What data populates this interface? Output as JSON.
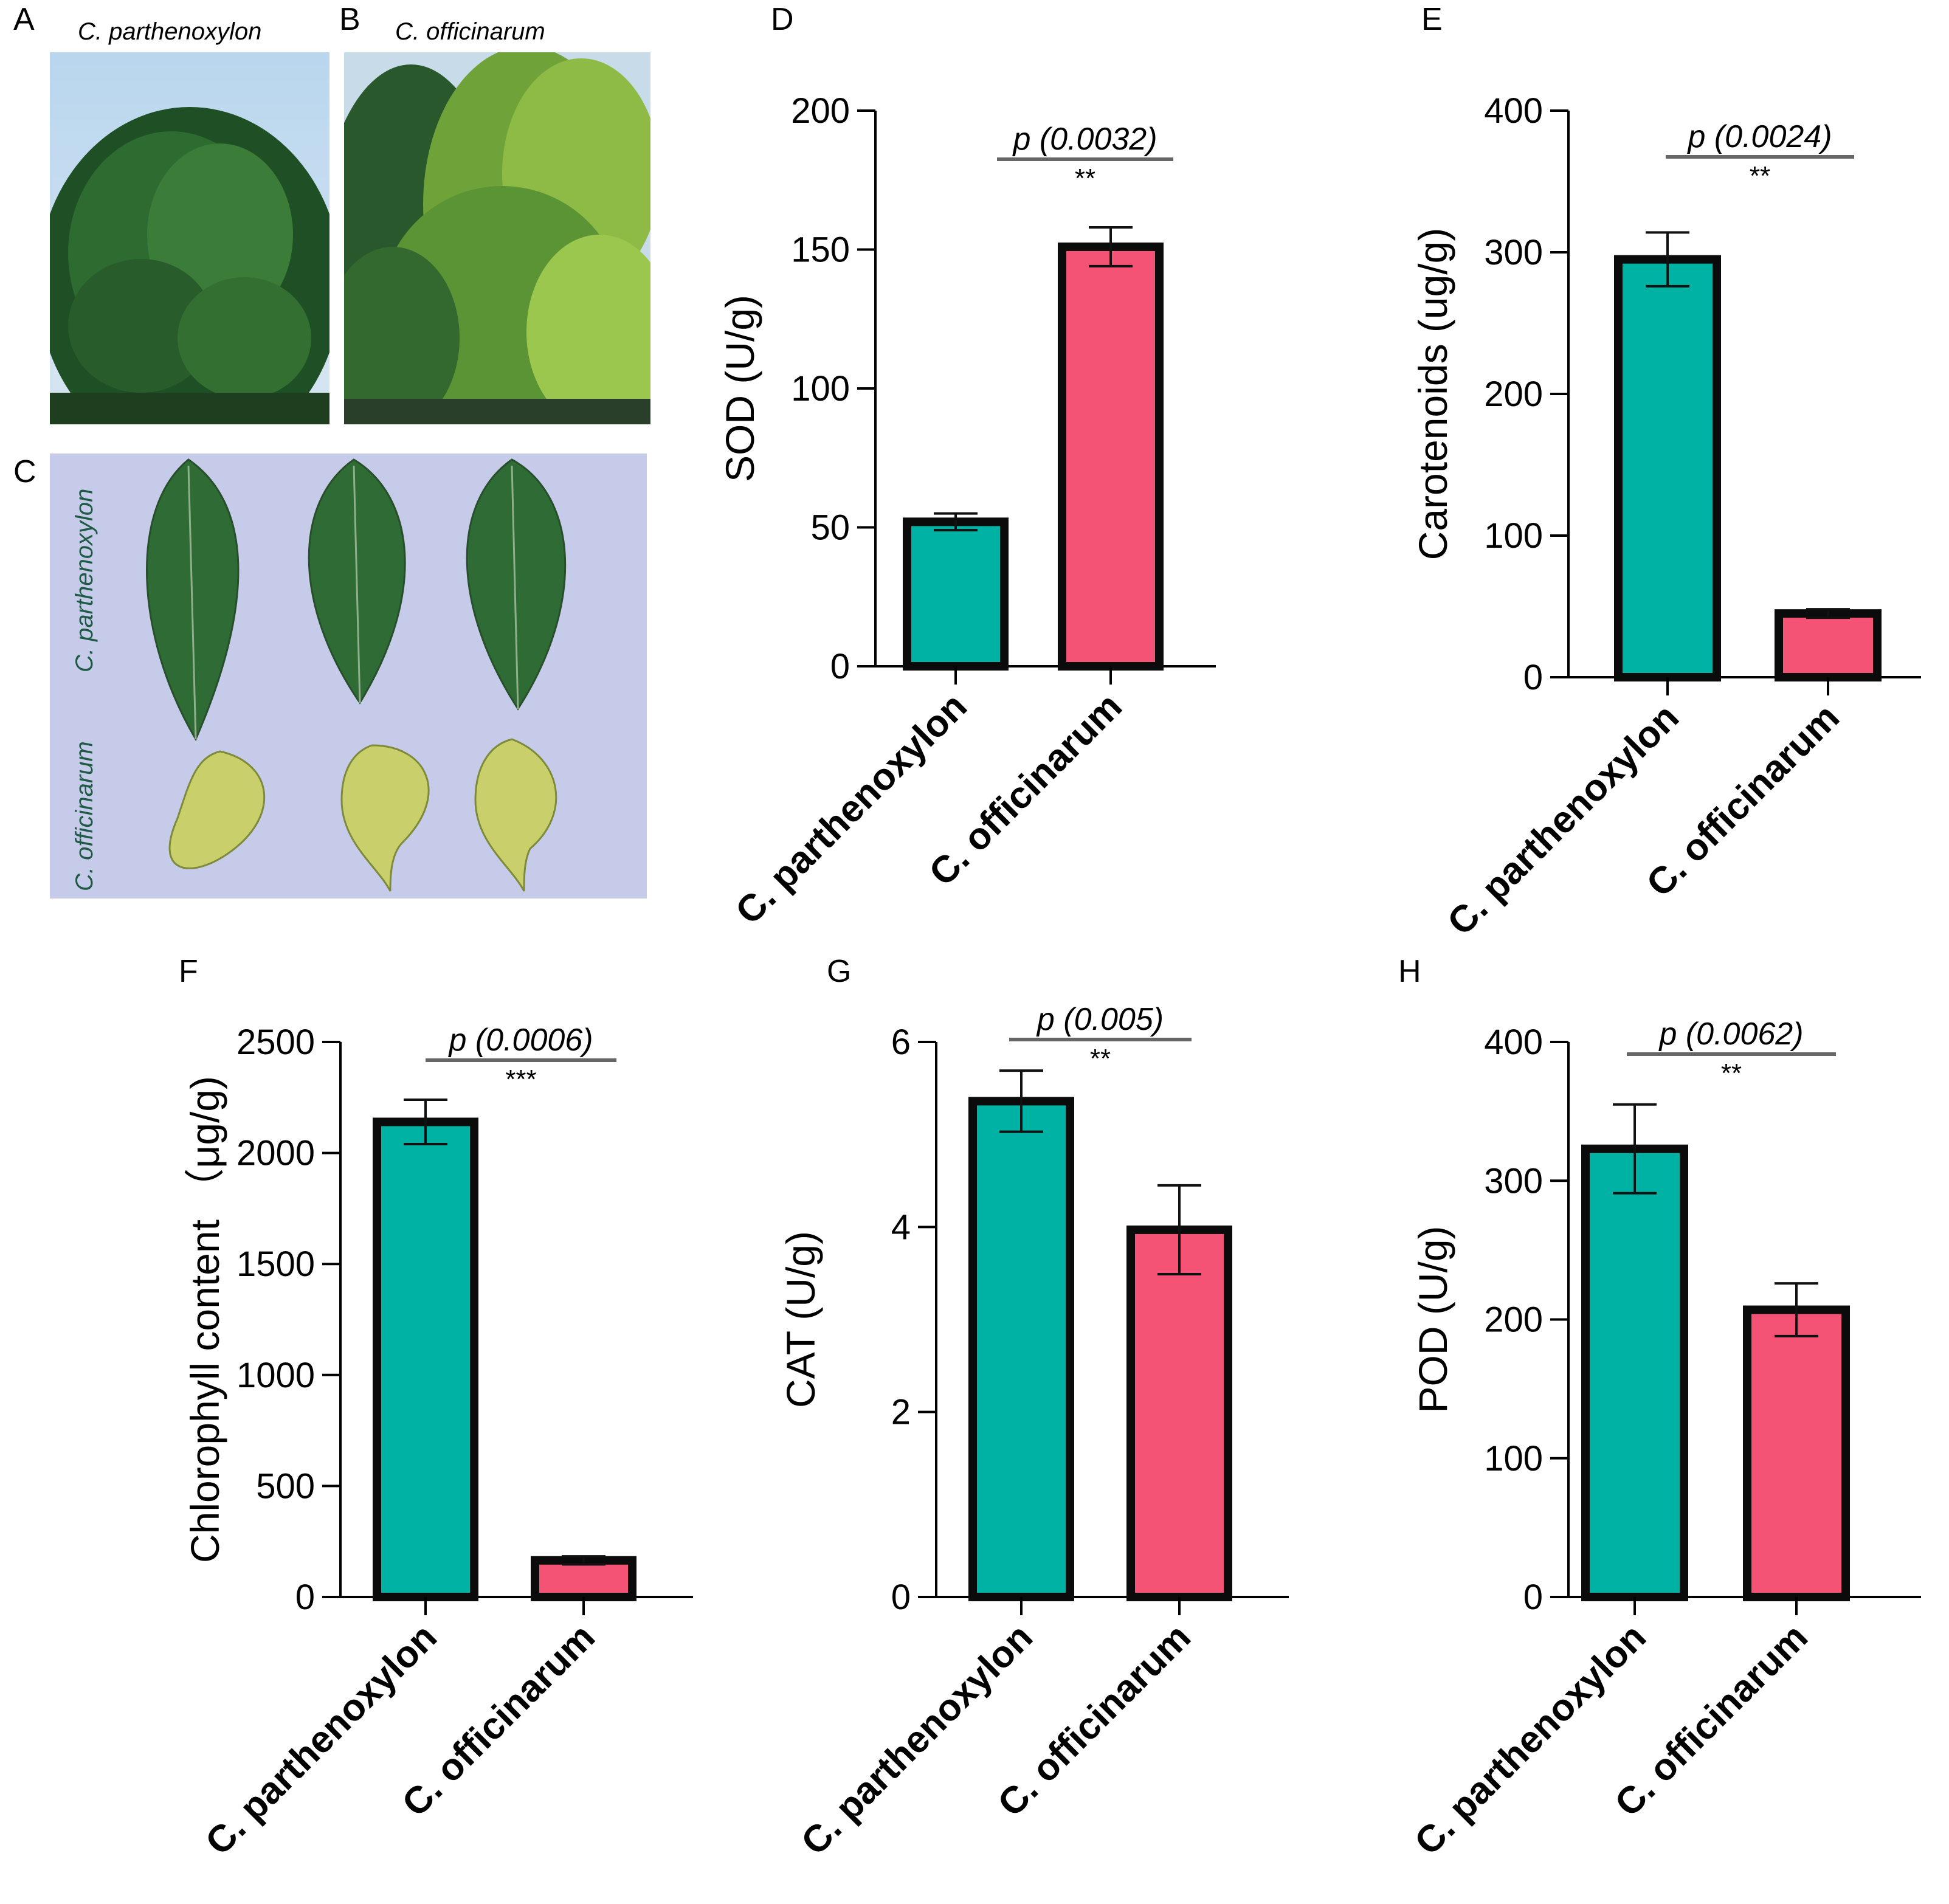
{
  "photos": {
    "A": {
      "letter": "A",
      "caption": "C. parthenoxylon"
    },
    "B": {
      "letter": "B",
      "caption": "C. officinarum"
    },
    "C": {
      "letter": "C",
      "label_top": "C. parthenoxylon",
      "label_bottom": "C. officinarum"
    }
  },
  "colors": {
    "teal": "#00b2a3",
    "pink": "#f45375",
    "outline": "#0b0b0b",
    "leaf_green": "#2f6b34",
    "leaf_yellow": "#c9cf6a",
    "board": "#c6cbe9"
  },
  "chart_data": [
    {
      "panel": "D",
      "type": "bar",
      "categories": [
        "C. parthenoxylon",
        "C. officinarum"
      ],
      "values": [
        52,
        151
      ],
      "errors": [
        3,
        7
      ],
      "ylabel": "SOD (U/g)",
      "ylim": [
        0,
        200
      ],
      "yticks": [
        "0",
        "50",
        "100",
        "150",
        "200"
      ],
      "p_text": "p (0.0032)",
      "stars": "**"
    },
    {
      "panel": "E",
      "type": "bar",
      "categories": [
        "C. parthenoxylon",
        "C. officinarum"
      ],
      "values": [
        295,
        45
      ],
      "errors": [
        19,
        3
      ],
      "ylabel": "Carotenoids  (ug/g)",
      "ylim": [
        0,
        400
      ],
      "yticks": [
        "0",
        "100",
        "200",
        "300",
        "400"
      ],
      "p_text": "p (0.0024)",
      "stars": "**"
    },
    {
      "panel": "F",
      "type": "bar",
      "categories": [
        "C. parthenoxylon",
        "C. officinarum"
      ],
      "values": [
        2140,
        165
      ],
      "errors": [
        100,
        18
      ],
      "ylabel": "Chlorophyll content （μg/g)",
      "ylim": [
        0,
        2500
      ],
      "yticks": [
        "0",
        "500",
        "1000",
        "1500",
        "2000",
        "2500"
      ],
      "p_text": "p (0.0006)",
      "stars": "***"
    },
    {
      "panel": "G",
      "type": "bar",
      "categories": [
        "C. parthenoxylon",
        "C. officinarum"
      ],
      "values": [
        5.36,
        3.97
      ],
      "errors": [
        0.33,
        0.48
      ],
      "ylabel": "CAT (U/g)",
      "ylim": [
        0,
        6
      ],
      "yticks": [
        "0",
        "2",
        "4",
        "6"
      ],
      "p_text": "p (0.005)",
      "stars": "**"
    },
    {
      "panel": "H",
      "type": "bar",
      "categories": [
        "C. parthenoxylon",
        "C. officinarum"
      ],
      "values": [
        323,
        207
      ],
      "errors": [
        32,
        19
      ],
      "ylabel": "POD (U/g)",
      "ylim": [
        0,
        400
      ],
      "yticks": [
        "0",
        "100",
        "200",
        "300",
        "400"
      ],
      "p_text": "p (0.0062)",
      "stars": "**"
    }
  ]
}
